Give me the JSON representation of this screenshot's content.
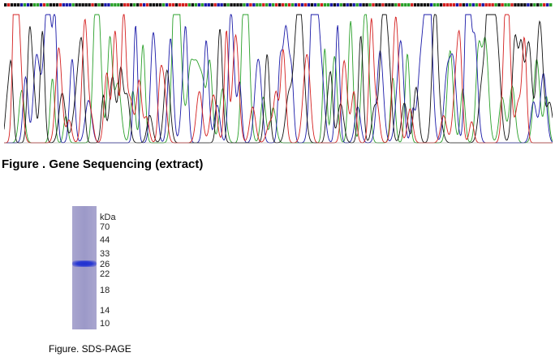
{
  "figure1": {
    "caption": "Figure . Gene Sequencing (extract)",
    "trace_colors": {
      "A": "#2aa02a",
      "C": "#1a1aa8",
      "G": "#111111",
      "T": "#d42020"
    }
  },
  "figure2": {
    "caption": "Figure. SDS-PAGE",
    "unit": "kDa",
    "markers": [
      "70",
      "44",
      "33",
      "26",
      "22",
      "18",
      "14",
      "10"
    ],
    "band_marker": "26"
  }
}
